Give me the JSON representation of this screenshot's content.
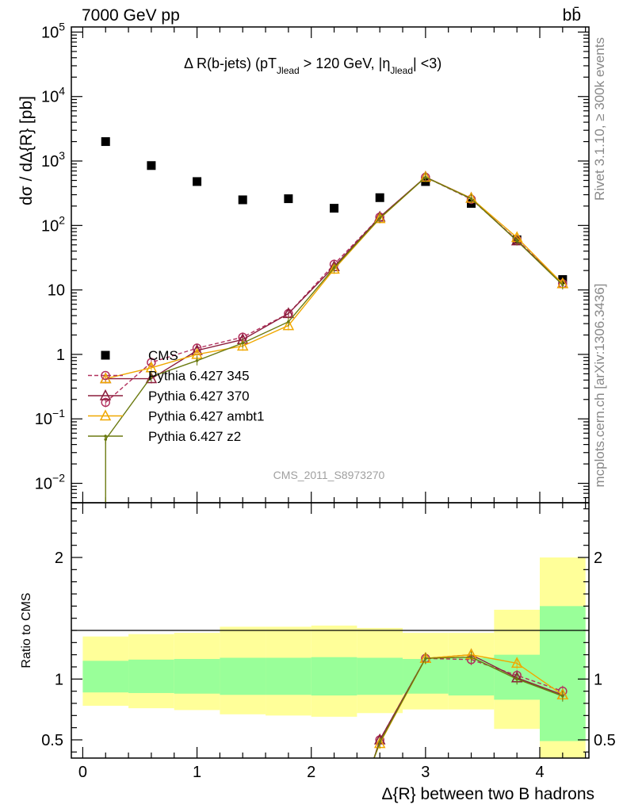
{
  "header": {
    "energy_label": "7000 GeV pp",
    "process_label": "bb̄"
  },
  "side_labels": {
    "rivet": "Rivet 3.1.10, ≥ 300k events",
    "mcplots": "mcplots.cern.ch [arXiv:1306.3436]"
  },
  "chart_data": [
    {
      "type": "scatter",
      "panel": "main",
      "title": "Δ R(b-jets) (pT_Jlead >  120 GeV, |η_Jlead| <3)",
      "title_parts": {
        "a": "Δ R(b-jets) (pT",
        "sub1": "Jlead",
        "b": " >  120 GeV, |η",
        "sub2": "Jlead",
        "c": "| <3)"
      },
      "ylabel": "dσ / dΔ{R} [pb]",
      "yscale": "log",
      "ylim": [
        0.005,
        120000
      ],
      "xlim": [
        -0.1,
        4.43
      ],
      "y_ticks": [
        {
          "value": 0.01,
          "label": "10",
          "exp": "−2"
        },
        {
          "value": 0.1,
          "label": "10",
          "exp": "−1"
        },
        {
          "value": 1,
          "label": "1",
          "exp": ""
        },
        {
          "value": 10,
          "label": "10",
          "exp": ""
        },
        {
          "value": 100,
          "label": "10",
          "exp": "2"
        },
        {
          "value": 1000,
          "label": "10",
          "exp": "3"
        },
        {
          "value": 10000,
          "label": "10",
          "exp": "4"
        },
        {
          "value": 100000,
          "label": "10",
          "exp": "5"
        }
      ],
      "watermark": "CMS_2011_S8973270",
      "legend": [
        "CMS",
        "Pythia 6.427 345",
        "Pythia 6.427 370",
        "Pythia 6.427 ambt1",
        "Pythia 6.427 z2"
      ],
      "x": [
        0.2,
        0.6,
        1.0,
        1.4,
        1.8,
        2.2,
        2.6,
        3.0,
        3.4,
        3.8,
        4.2
      ],
      "series": [
        {
          "name": "CMS",
          "color": "#000000",
          "marker": "square",
          "values": [
            2000,
            850,
            480,
            250,
            260,
            185,
            270,
            480,
            220,
            60,
            14.5
          ]
        },
        {
          "name": "Pythia 6.427 345",
          "color": "#b2315e",
          "marker": "circle",
          "dash": true,
          "values": [
            0.18,
            0.75,
            1.25,
            1.85,
            4.3,
            25,
            135,
            560,
            255,
            60,
            12.5
          ]
        },
        {
          "name": "Pythia 6.427 370",
          "color": "#8b1d3c",
          "marker": "triangle",
          "values": [
            0.42,
            0.42,
            1.15,
            1.7,
            4.3,
            23,
            135,
            565,
            265,
            58,
            12.5
          ]
        },
        {
          "name": "Pythia 6.427 ambt1",
          "color": "#f0a800",
          "marker": "triangle",
          "values": [
            0.42,
            0.62,
            1.0,
            1.35,
            2.8,
            21,
            128,
            560,
            265,
            65,
            12.5
          ]
        },
        {
          "name": "Pythia 6.427 z2",
          "color": "#6b7a10",
          "marker": "dot",
          "values": [
            0.048,
            0.45,
            0.8,
            1.5,
            3.2,
            22,
            130,
            560,
            260,
            58,
            12.0
          ]
        }
      ]
    },
    {
      "type": "line",
      "panel": "ratio",
      "ylabel": "Ratio to CMS",
      "xlabel": "Δ{R} between two B hadrons",
      "ylim": [
        0.35,
        2.45
      ],
      "xlim": [
        -0.1,
        4.43
      ],
      "y_ticks": [
        {
          "value": 0.5,
          "label": "0.5"
        },
        {
          "value": 1,
          "label": "1"
        },
        {
          "value": 2,
          "label": "2"
        }
      ],
      "x_ticks": [
        {
          "value": 0,
          "label": "0"
        },
        {
          "value": 1,
          "label": "1"
        },
        {
          "value": 2,
          "label": "2"
        },
        {
          "value": 3,
          "label": "3"
        },
        {
          "value": 4,
          "label": "4"
        }
      ],
      "bands": {
        "edges": [
          0.0,
          0.4,
          0.8,
          1.2,
          1.6,
          2.0,
          2.4,
          2.8,
          3.2,
          3.6,
          4.0,
          4.4
        ],
        "inner_color": "#99ff99",
        "outer_color": "#ffff99",
        "inner": [
          [
            0.89,
            1.15
          ],
          [
            0.885,
            1.16
          ],
          [
            0.88,
            1.165
          ],
          [
            0.87,
            1.175
          ],
          [
            0.87,
            1.175
          ],
          [
            0.865,
            1.18
          ],
          [
            0.87,
            1.175
          ],
          [
            0.88,
            1.165
          ],
          [
            0.865,
            1.175
          ],
          [
            0.83,
            1.2
          ],
          [
            0.49,
            1.6
          ]
        ],
        "outer": [
          [
            0.78,
            1.35
          ],
          [
            0.76,
            1.37
          ],
          [
            0.745,
            1.38
          ],
          [
            0.71,
            1.43
          ],
          [
            0.7,
            1.43
          ],
          [
            0.69,
            1.44
          ],
          [
            0.72,
            1.42
          ],
          [
            0.75,
            1.38
          ],
          [
            0.75,
            1.38
          ],
          [
            0.59,
            1.57
          ],
          [
            0.32,
            2.0
          ]
        ]
      },
      "x": [
        0.2,
        0.6,
        1.0,
        1.4,
        1.8,
        2.2,
        2.6,
        3.0,
        3.4,
        3.8,
        4.2
      ],
      "series": [
        {
          "name": "Pythia 6.427 345",
          "values": [
            null,
            null,
            null,
            null,
            null,
            null,
            0.5,
            1.17,
            1.16,
            1.03,
            0.9
          ]
        },
        {
          "name": "Pythia 6.427 370",
          "values": [
            null,
            null,
            null,
            null,
            null,
            null,
            0.5,
            1.17,
            1.2,
            1.01,
            0.87
          ]
        },
        {
          "name": "Pythia 6.427 ambt1",
          "values": [
            null,
            null,
            null,
            null,
            null,
            null,
            0.47,
            1.17,
            1.2,
            1.13,
            0.87
          ]
        },
        {
          "name": "Pythia 6.427 z2",
          "values": [
            null,
            null,
            null,
            null,
            null,
            null,
            0.48,
            1.17,
            1.18,
            1.0,
            0.86
          ]
        }
      ]
    }
  ]
}
